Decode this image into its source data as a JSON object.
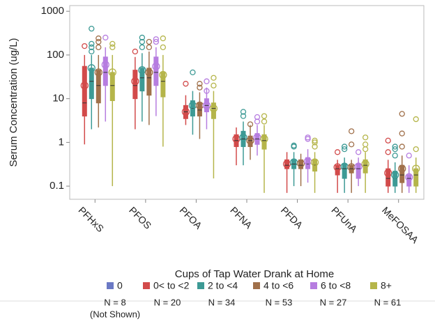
{
  "chart_data": {
    "type": "box",
    "y_label": "Serum Concentration (ug/L)",
    "log_scale": true,
    "categories": [
      "PFHxS",
      "PFOS",
      "PFOA",
      "PFNA",
      "PFDA",
      "PFUnA",
      "MeFOSAA"
    ],
    "ylim": [
      0.05,
      1350
    ],
    "yticks": [
      0.1,
      1,
      10,
      100,
      1000
    ],
    "legend_title": "Cups of  Tap Water Drank at Home",
    "series": [
      {
        "name": "0",
        "color": "#6b79c5",
        "sample_size": "N = 8",
        "note": "(Not Shown)",
        "values": [
          null,
          null,
          null,
          null,
          null,
          null,
          null
        ]
      },
      {
        "name": "0< to <2",
        "color": "#d24a4a",
        "sample_size": "N = 20",
        "values": [
          {
            "min": 0.9,
            "q1": 4,
            "median": 8,
            "q3": 55,
            "max": 100,
            "mean": 20,
            "outliers": [
              160
            ]
          },
          {
            "min": 2,
            "q1": 10,
            "median": 20,
            "q3": 45,
            "max": 90,
            "mean": 25,
            "outliers": [
              120
            ]
          },
          {
            "min": 2.5,
            "q1": 3.5,
            "median": 5,
            "q3": 7,
            "max": 12,
            "mean": 5,
            "outliers": [
              22
            ]
          },
          {
            "min": 0.3,
            "q1": 0.8,
            "median": 1.1,
            "q3": 1.5,
            "max": 2.2,
            "mean": 1.2,
            "outliers": []
          },
          {
            "min": 0.07,
            "q1": 0.25,
            "median": 0.3,
            "q3": 0.4,
            "max": 0.6,
            "mean": 0.32,
            "outliers": []
          },
          {
            "min": 0.07,
            "q1": 0.18,
            "median": 0.25,
            "q3": 0.3,
            "max": 0.4,
            "mean": 0.27,
            "outliers": [
              0.6
            ]
          },
          {
            "min": 0.07,
            "q1": 0.1,
            "median": 0.15,
            "q3": 0.25,
            "max": 0.4,
            "mean": 0.2,
            "outliers": [
              0.6,
              1.1
            ]
          }
        ]
      },
      {
        "name": "2 to <4",
        "color": "#3d9a95",
        "sample_size": "N = 34",
        "values": [
          {
            "min": 2,
            "q1": 10,
            "median": 25,
            "q3": 50,
            "max": 100,
            "mean": 50,
            "outliers": [
              120,
              150,
              180,
              400
            ]
          },
          {
            "min": 3,
            "q1": 15,
            "median": 30,
            "q3": 50,
            "max": 110,
            "mean": 45,
            "outliers": [
              150,
              200,
              250
            ]
          },
          {
            "min": 1.5,
            "q1": 4,
            "median": 6,
            "q3": 9,
            "max": 15,
            "mean": 7,
            "outliers": [
              40
            ]
          },
          {
            "min": 0.3,
            "q1": 0.8,
            "median": 1.2,
            "q3": 1.8,
            "max": 3,
            "mean": 1.3,
            "outliers": [
              4,
              5
            ]
          },
          {
            "min": 0.1,
            "q1": 0.25,
            "median": 0.32,
            "q3": 0.4,
            "max": 0.6,
            "mean": 0.35,
            "outliers": [
              0.8,
              0.85
            ]
          },
          {
            "min": 0.07,
            "q1": 0.15,
            "median": 0.25,
            "q3": 0.32,
            "max": 0.45,
            "mean": 0.28,
            "outliers": [
              0.7,
              0.8
            ]
          },
          {
            "min": 0.07,
            "q1": 0.1,
            "median": 0.15,
            "q3": 0.22,
            "max": 0.35,
            "mean": 0.18,
            "outliers": [
              0.5,
              0.7,
              0.8
            ]
          }
        ]
      },
      {
        "name": "4 to <6",
        "color": "#a0704a",
        "sample_size": "N = 53",
        "values": [
          {
            "min": 2.2,
            "q1": 8,
            "median": 20,
            "q3": 45,
            "max": 100,
            "mean": 40,
            "outliers": [
              150,
              200,
              240
            ]
          },
          {
            "min": 2.5,
            "q1": 12,
            "median": 30,
            "q3": 50,
            "max": 120,
            "mean": 40,
            "outliers": [
              150,
              200
            ]
          },
          {
            "min": 1.2,
            "q1": 4,
            "median": 5.5,
            "q3": 8,
            "max": 14,
            "mean": 7,
            "outliers": [
              18,
              22
            ]
          },
          {
            "min": 0.4,
            "q1": 0.8,
            "median": 1.1,
            "q3": 1.4,
            "max": 2.5,
            "mean": 1.1,
            "outliers": [
              2.6
            ]
          },
          {
            "min": 0.1,
            "q1": 0.25,
            "median": 0.3,
            "q3": 0.4,
            "max": 0.55,
            "mean": 0.33,
            "outliers": []
          },
          {
            "min": 0.07,
            "q1": 0.2,
            "median": 0.25,
            "q3": 0.3,
            "max": 0.4,
            "mean": 0.27,
            "outliers": [
              0.9,
              1.8
            ]
          },
          {
            "min": 0.07,
            "q1": 0.12,
            "median": 0.18,
            "q3": 0.3,
            "max": 0.5,
            "mean": 0.25,
            "outliers": [
              0.8,
              1.6,
              4.5
            ]
          }
        ]
      },
      {
        "name": "6 to <8",
        "color": "#b67de0",
        "sample_size": "N = 27",
        "values": [
          {
            "min": 3,
            "q1": 20,
            "median": 40,
            "q3": 90,
            "max": 150,
            "mean": 60,
            "outliers": [
              250
            ]
          },
          {
            "min": 4,
            "q1": 20,
            "median": 40,
            "q3": 90,
            "max": 150,
            "mean": 55,
            "outliers": [
              200,
              230
            ]
          },
          {
            "min": 2,
            "q1": 5,
            "median": 7,
            "q3": 10,
            "max": 18,
            "mean": 7,
            "outliers": [
              15,
              25
            ]
          },
          {
            "min": 0.5,
            "q1": 0.9,
            "median": 1.2,
            "q3": 1.6,
            "max": 2.5,
            "mean": 1.3,
            "outliers": [
              3,
              3.8
            ]
          },
          {
            "min": 0.12,
            "q1": 0.25,
            "median": 0.32,
            "q3": 0.45,
            "max": 0.7,
            "mean": 0.37,
            "outliers": [
              1.2,
              1.3
            ]
          },
          {
            "min": 0.1,
            "q1": 0.15,
            "median": 0.25,
            "q3": 0.32,
            "max": 0.45,
            "mean": 0.28,
            "outliers": [
              0.6
            ]
          },
          {
            "min": 0.07,
            "q1": 0.1,
            "median": 0.15,
            "q3": 0.18,
            "max": 0.3,
            "mean": 0.16,
            "outliers": [
              0.5
            ]
          }
        ]
      },
      {
        "name": "8+",
        "color": "#b5b54a",
        "sample_size": "N = 61",
        "values": [
          {
            "min": 0.1,
            "q1": 9,
            "median": 20,
            "q3": 40,
            "max": 100,
            "mean": 40,
            "outliers": [
              150,
              180
            ]
          },
          {
            "min": 0.8,
            "q1": 11,
            "median": 25,
            "q3": 40,
            "max": 100,
            "mean": 35,
            "outliers": [
              150,
              240
            ]
          },
          {
            "min": 0.15,
            "q1": 3.5,
            "median": 6,
            "q3": 8,
            "max": 15,
            "mean": 6,
            "outliers": [
              20,
              30
            ]
          },
          {
            "min": 0.07,
            "q1": 0.7,
            "median": 1.1,
            "q3": 1.5,
            "max": 2.5,
            "mean": 1.2,
            "outliers": [
              3,
              4
            ]
          },
          {
            "min": 0.07,
            "q1": 0.22,
            "median": 0.3,
            "q3": 0.4,
            "max": 0.6,
            "mean": 0.35,
            "outliers": [
              0.8,
              1,
              1.1
            ]
          },
          {
            "min": 0.07,
            "q1": 0.2,
            "median": 0.3,
            "q3": 0.4,
            "max": 0.6,
            "mean": 0.32,
            "outliers": [
              0.7,
              0.9,
              1.3
            ]
          },
          {
            "min": 0.07,
            "q1": 0.1,
            "median": 0.18,
            "q3": 0.25,
            "max": 0.45,
            "mean": 0.25,
            "outliers": [
              0.7,
              3.4
            ]
          }
        ]
      }
    ]
  }
}
